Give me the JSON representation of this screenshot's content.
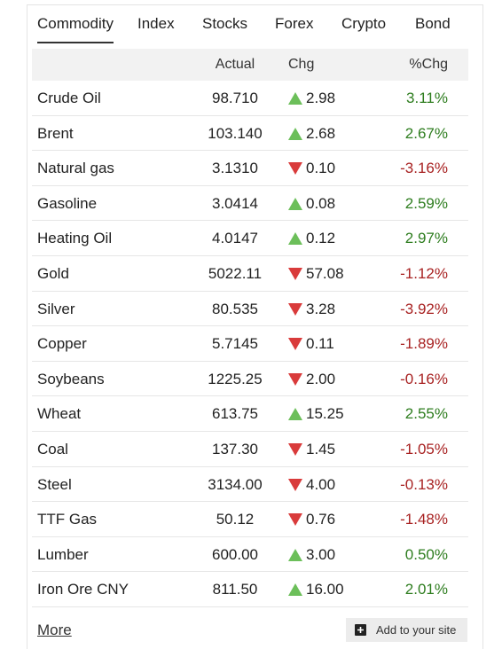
{
  "tabs": [
    "Commodity",
    "Index",
    "Stocks",
    "Forex",
    "Crypto",
    "Bond"
  ],
  "active_tab": 0,
  "table": {
    "header": [
      "Actual",
      "Chg",
      "%Chg"
    ],
    "rows": [
      {
        "name": "Crude Oil",
        "actual": "98.710",
        "change": "2.98",
        "change_pct": "3.11%",
        "direction": "up"
      },
      {
        "name": "Brent",
        "actual": "103.140",
        "change": "2.68",
        "change_pct": "2.67%",
        "direction": "up"
      },
      {
        "name": "Natural gas",
        "actual": "3.1310",
        "change": "0.10",
        "change_pct": "-3.16%",
        "direction": "down"
      },
      {
        "name": "Gasoline",
        "actual": "3.0414",
        "change": "0.08",
        "change_pct": "2.59%",
        "direction": "up"
      },
      {
        "name": "Heating Oil",
        "actual": "4.0147",
        "change": "0.12",
        "change_pct": "2.97%",
        "direction": "up"
      },
      {
        "name": "Gold",
        "actual": "5022.11",
        "change": "57.08",
        "change_pct": "-1.12%",
        "direction": "down"
      },
      {
        "name": "Silver",
        "actual": "80.535",
        "change": "3.28",
        "change_pct": "-3.92%",
        "direction": "down"
      },
      {
        "name": "Copper",
        "actual": "5.7145",
        "change": "0.11",
        "change_pct": "-1.89%",
        "direction": "down"
      },
      {
        "name": "Soybeans",
        "actual": "1225.25",
        "change": "2.00",
        "change_pct": "-0.16%",
        "direction": "down"
      },
      {
        "name": "Wheat",
        "actual": "613.75",
        "change": "15.25",
        "change_pct": "2.55%",
        "direction": "up"
      },
      {
        "name": "Coal",
        "actual": "137.30",
        "change": "1.45",
        "change_pct": "-1.05%",
        "direction": "down"
      },
      {
        "name": "Steel",
        "actual": "3134.00",
        "change": "4.00",
        "change_pct": "-0.13%",
        "direction": "down"
      },
      {
        "name": "TTF Gas",
        "actual": "50.12",
        "change": "0.76",
        "change_pct": "-1.48%",
        "direction": "down"
      },
      {
        "name": "Lumber",
        "actual": "600.00",
        "change": "3.00",
        "change_pct": "0.50%",
        "direction": "up"
      },
      {
        "name": "Iron Ore CNY",
        "actual": "811.50",
        "change": "16.00",
        "change_pct": "2.01%",
        "direction": "up"
      }
    ]
  },
  "footer": {
    "more_link": "More",
    "add_button": "Add to your site"
  }
}
